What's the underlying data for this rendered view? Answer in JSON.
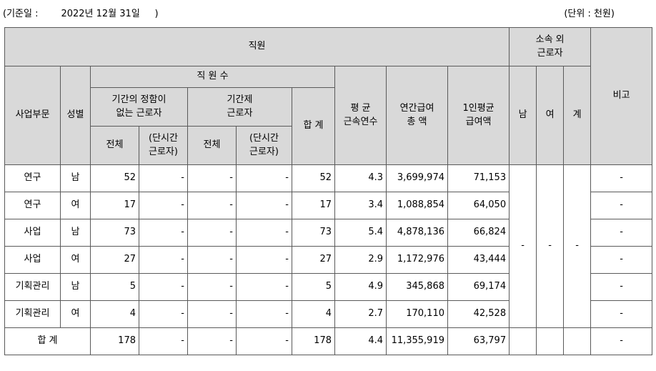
{
  "meta": {
    "base_date_label": "(기준일 :",
    "base_date_value": "2022년 12월 31일",
    "base_date_close": ")",
    "unit": "(단위 : 천원)"
  },
  "headers": {
    "staff": "직원",
    "affiliated_line1": "소속 외",
    "affiliated_line2": "근로자",
    "remarks": "비고",
    "division": "사업부문",
    "gender": "성별",
    "staff_count": "직 원 수",
    "permanent_line1": "기간의 정함이",
    "permanent_line2": "없는 근로자",
    "contract_line1": "기간제",
    "contract_line2": "근로자",
    "total_sum": "합 계",
    "tenure_line1": "평 균",
    "tenure_line2": "근속연수",
    "salary_line1": "연간급여",
    "salary_line2": "총 액",
    "avg_salary_line1": "1인평균",
    "avg_salary_line2": "급여액",
    "male": "남",
    "female": "여",
    "sum": "계",
    "all": "전체",
    "parttime_line1": "(단시간",
    "parttime_line2": "근로자)"
  },
  "rows": [
    {
      "division": "연구",
      "gender": "남",
      "perm_total": "52",
      "perm_part": "-",
      "cont_total": "-",
      "cont_part": "-",
      "total": "52",
      "tenure": "4.3",
      "salary_total": "3,699,974",
      "salary_avg": "71,153",
      "remark": "-"
    },
    {
      "division": "연구",
      "gender": "여",
      "perm_total": "17",
      "perm_part": "-",
      "cont_total": "-",
      "cont_part": "-",
      "total": "17",
      "tenure": "3.4",
      "salary_total": "1,088,854",
      "salary_avg": "64,050",
      "remark": "-"
    },
    {
      "division": "사업",
      "gender": "남",
      "perm_total": "73",
      "perm_part": "-",
      "cont_total": "-",
      "cont_part": "-",
      "total": "73",
      "tenure": "5.4",
      "salary_total": "4,878,136",
      "salary_avg": "66,824",
      "remark": "-"
    },
    {
      "division": "사업",
      "gender": "여",
      "perm_total": "27",
      "perm_part": "-",
      "cont_total": "-",
      "cont_part": "-",
      "total": "27",
      "tenure": "2.9",
      "salary_total": "1,172,976",
      "salary_avg": "43,444",
      "remark": "-"
    },
    {
      "division": "기획관리",
      "gender": "남",
      "perm_total": "5",
      "perm_part": "-",
      "cont_total": "-",
      "cont_part": "-",
      "total": "5",
      "tenure": "4.9",
      "salary_total": "345,868",
      "salary_avg": "69,174",
      "remark": "-"
    },
    {
      "division": "기획관리",
      "gender": "여",
      "perm_total": "4",
      "perm_part": "-",
      "cont_total": "-",
      "cont_part": "-",
      "total": "4",
      "tenure": "2.7",
      "salary_total": "170,110",
      "salary_avg": "42,528",
      "remark": "-"
    }
  ],
  "affiliated": {
    "male": "-",
    "female": "-",
    "sum": "-"
  },
  "total_row": {
    "label": "합 계",
    "perm_total": "178",
    "perm_part": "-",
    "cont_total": "-",
    "cont_part": "-",
    "total": "178",
    "tenure": "4.4",
    "salary_total": "11,355,919",
    "salary_avg": "63,797",
    "remark": "-"
  }
}
